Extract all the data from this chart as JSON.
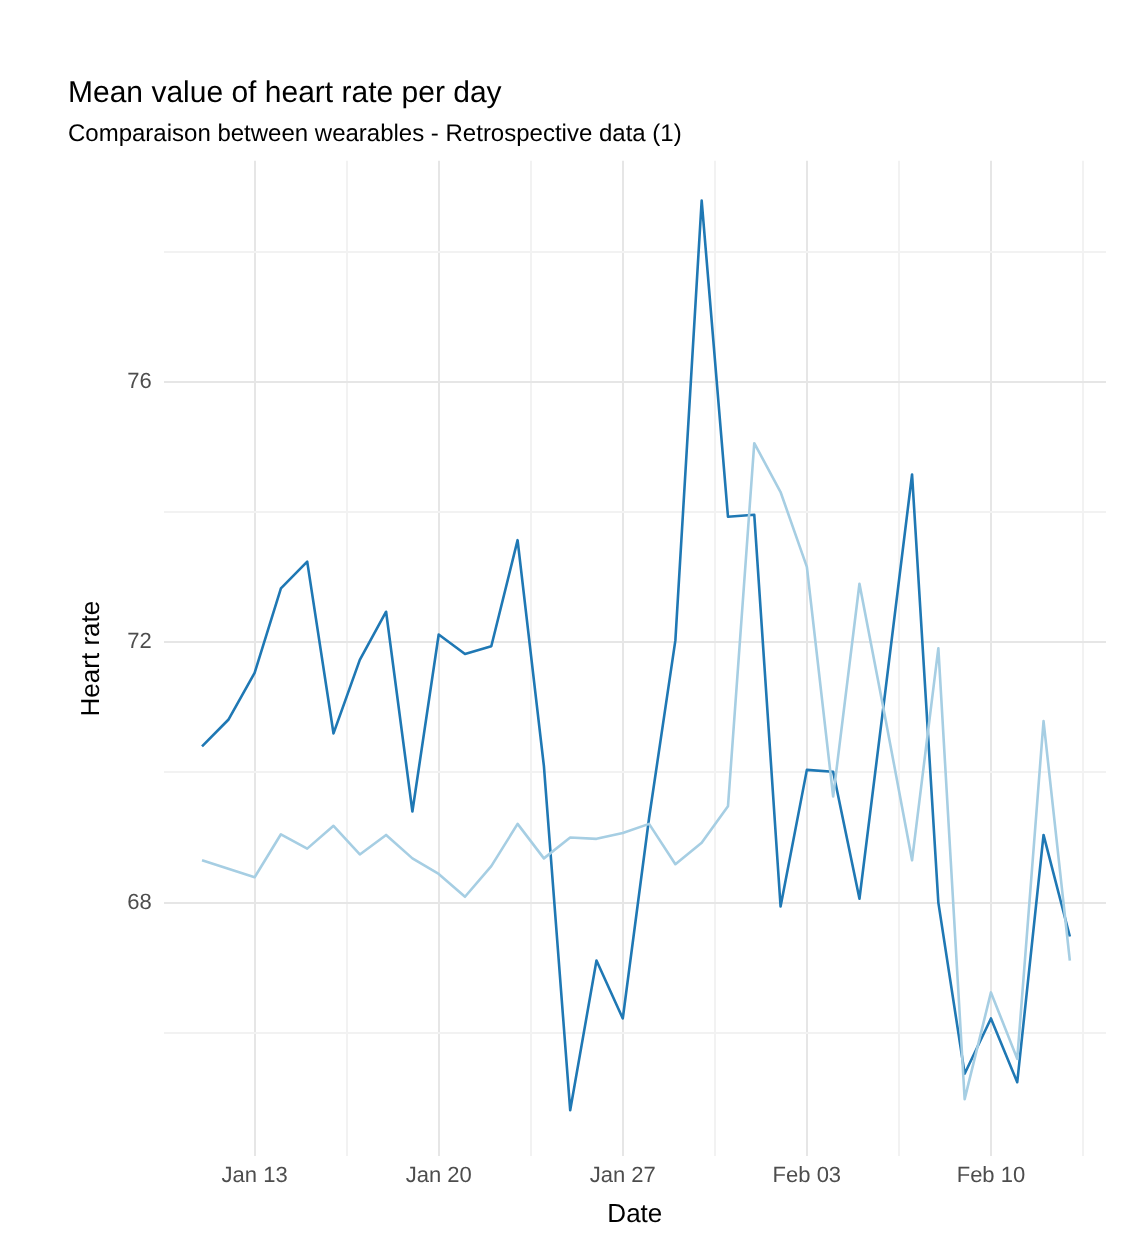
{
  "chart_data": {
    "type": "line",
    "title": "Mean value of heart rate per day",
    "subtitle": "Comparaison between wearables - Retrospective data (1)",
    "xlabel": "Date",
    "ylabel": "Heart rate",
    "x": [
      "--01-11",
      "--01-12",
      "--01-13",
      "--01-14",
      "--01-15",
      "--01-16",
      "--01-17",
      "--01-18",
      "--01-19",
      "--01-20",
      "--01-21",
      "--01-22",
      "--01-23",
      "--01-24",
      "--01-25",
      "--01-26",
      "--01-27",
      "--01-28",
      "--01-29",
      "--01-30",
      "--01-31",
      "--02-01",
      "--02-02",
      "--02-03",
      "--02-04",
      "--02-05",
      "--02-06",
      "--02-07",
      "--02-08",
      "--02-09",
      "--02-10",
      "--02-11",
      "--02-12",
      "--02-13"
    ],
    "series": [
      {
        "color": "#a6cee3",
        "values": [
          68.65,
          68.52,
          68.39,
          69.05,
          68.83,
          69.18,
          68.74,
          69.04,
          68.68,
          68.44,
          68.09,
          68.56,
          69.21,
          68.68,
          69.0,
          68.98,
          69.07,
          69.21,
          68.59,
          68.92,
          69.48,
          75.06,
          74.31,
          73.16,
          69.63,
          72.9,
          70.8,
          68.65,
          71.91,
          64.98,
          66.62,
          65.6,
          70.79,
          67.11
        ]
      },
      {
        "color": "#1f78b4",
        "values": [
          70.4,
          70.81,
          71.53,
          72.83,
          73.24,
          70.6,
          71.73,
          72.47,
          69.4,
          72.12,
          71.82,
          71.94,
          73.57,
          70.1,
          64.81,
          67.11,
          66.22,
          69.3,
          72.03,
          78.79,
          73.93,
          73.96,
          67.94,
          70.04,
          70.01,
          68.06,
          71.3,
          74.58,
          68.0,
          65.37,
          66.22,
          65.24,
          69.04,
          67.48
        ]
      }
    ],
    "xlim": [
      "--01-09T13:00",
      "--02-14T09:00"
    ],
    "xticks": [
      {
        "value": "--01-13",
        "label": "Jan 13"
      },
      {
        "value": "--01-16T12:00",
        "label": null
      },
      {
        "value": "--01-20",
        "label": "Jan 20"
      },
      {
        "value": "--01-23T12:00",
        "label": null
      },
      {
        "value": "--01-27",
        "label": "Jan 27"
      },
      {
        "value": "--01-30T12:00",
        "label": null
      },
      {
        "value": "--02-03",
        "label": "Feb 03"
      },
      {
        "value": "--02-06T12:00",
        "label": null
      },
      {
        "value": "--02-10",
        "label": "Feb 10"
      },
      {
        "value": "--02-13T12:00",
        "label": null
      }
    ],
    "ylim": [
      64.1,
      79.4
    ],
    "yticks": [
      {
        "value": 66,
        "label": null
      },
      68,
      {
        "value": 70,
        "label": null
      },
      72,
      {
        "value": 74,
        "label": null
      },
      76,
      {
        "value": 78,
        "label": null
      }
    ],
    "grid": true,
    "legend": false,
    "marker": "none",
    "line_style": "solid"
  }
}
